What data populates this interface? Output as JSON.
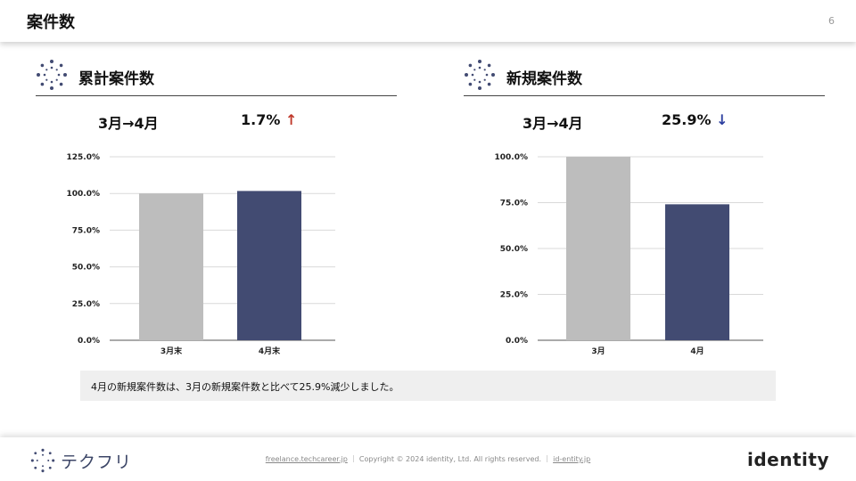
{
  "header": {
    "title": "案件数",
    "page_number": "6"
  },
  "colors": {
    "bar_prev": "#bdbdbd",
    "bar_curr": "#424b72",
    "up": "#c0392b",
    "down": "#2c3e9f",
    "grid": "#d9d9d9"
  },
  "left": {
    "section_title": "累計案件数",
    "period": "3月→4月",
    "change": "1.7%",
    "change_arrow": "↑"
  },
  "right": {
    "section_title": "新規案件数",
    "period": "3月→4月",
    "change": "25.9%",
    "change_arrow": "↓"
  },
  "chart_data": [
    {
      "type": "bar",
      "categories": [
        "3月末",
        "4月末"
      ],
      "values": [
        100.0,
        101.7
      ],
      "yticks": [
        "0.0%",
        "25.0%",
        "50.0%",
        "75.0%",
        "100.0%",
        "125.0%"
      ],
      "ylim": [
        0,
        125
      ],
      "grid": true
    },
    {
      "type": "bar",
      "categories": [
        "3月",
        "4月"
      ],
      "values": [
        100.0,
        74.1
      ],
      "yticks": [
        "0.0%",
        "25.0%",
        "50.0%",
        "75.0%",
        "100.0%"
      ],
      "ylim": [
        0,
        100
      ],
      "grid": true
    }
  ],
  "note": "4月の新規案件数は、3月の新規案件数と比べて25.9%減少しました。",
  "footer": {
    "brand": "テクフリ",
    "link1": "freelance.techcareer.jp",
    "copyright": "｜ Copyright © 2024 identity, Ltd. All rights reserved. ｜",
    "link2": "id-entity.jp",
    "logo": "identity"
  }
}
